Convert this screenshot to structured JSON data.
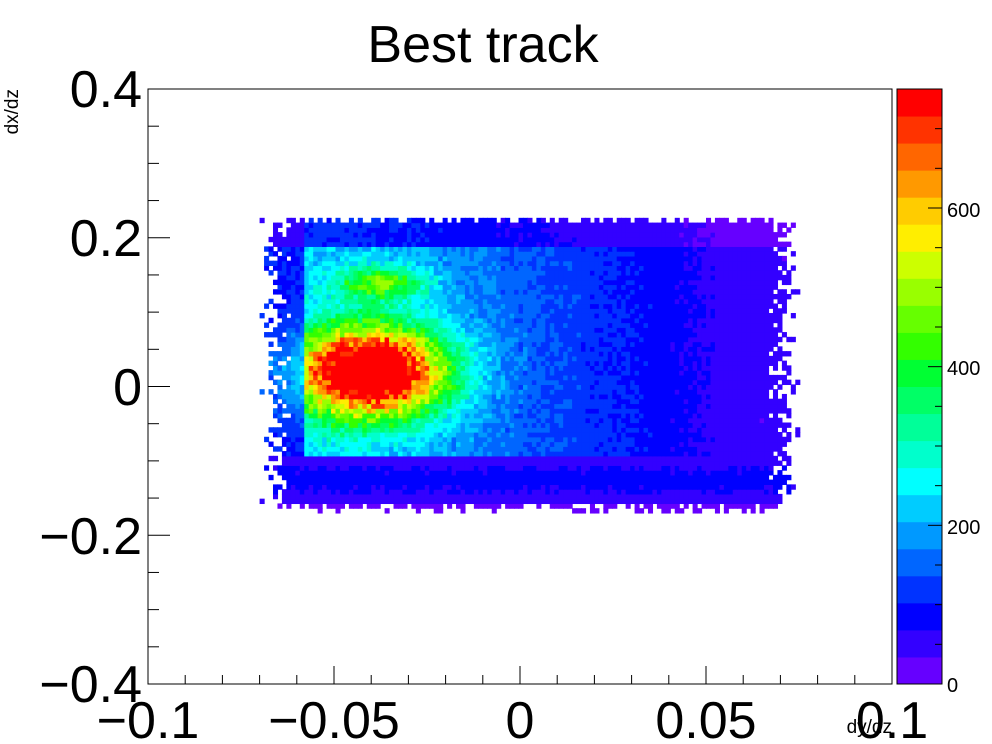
{
  "chart_data": {
    "type": "heatmap",
    "title": "Best track",
    "xlabel": "dy/dz",
    "ylabel": "dx/dz",
    "xlim": [
      -0.1,
      0.1
    ],
    "ylim": [
      -0.4,
      0.4
    ],
    "x_ticks": [
      "−0.1",
      "−0.05",
      "0",
      "0.05",
      "0.1"
    ],
    "y_ticks": [
      "−0.4",
      "−0.2",
      "0",
      "0.2",
      "0.4"
    ],
    "colorbar": {
      "range": [
        0,
        750
      ],
      "ticks": [
        "0",
        "200",
        "400",
        "600"
      ],
      "palette": [
        "#6600ff",
        "#3300ff",
        "#0000ff",
        "#0033ff",
        "#0066ff",
        "#0099ff",
        "#00ccff",
        "#00ffff",
        "#00ffcc",
        "#00ff99",
        "#00ff66",
        "#00ff33",
        "#33ff00",
        "#66ff00",
        "#99ff00",
        "#ccff00",
        "#ffee00",
        "#ffcc00",
        "#ff9900",
        "#ff6600",
        "#ff3300",
        "#ff0000"
      ]
    },
    "distribution": {
      "x_range": [
        -0.07,
        0.075
      ],
      "y_range": [
        -0.17,
        0.23
      ],
      "peak": {
        "x": -0.04,
        "y": 0.02,
        "value": 750
      },
      "secondary_lobe": {
        "x": -0.037,
        "y": 0.14,
        "value": 420
      },
      "band_gap_y": -0.095,
      "lower_band_y": [
        -0.16,
        -0.095
      ]
    }
  }
}
